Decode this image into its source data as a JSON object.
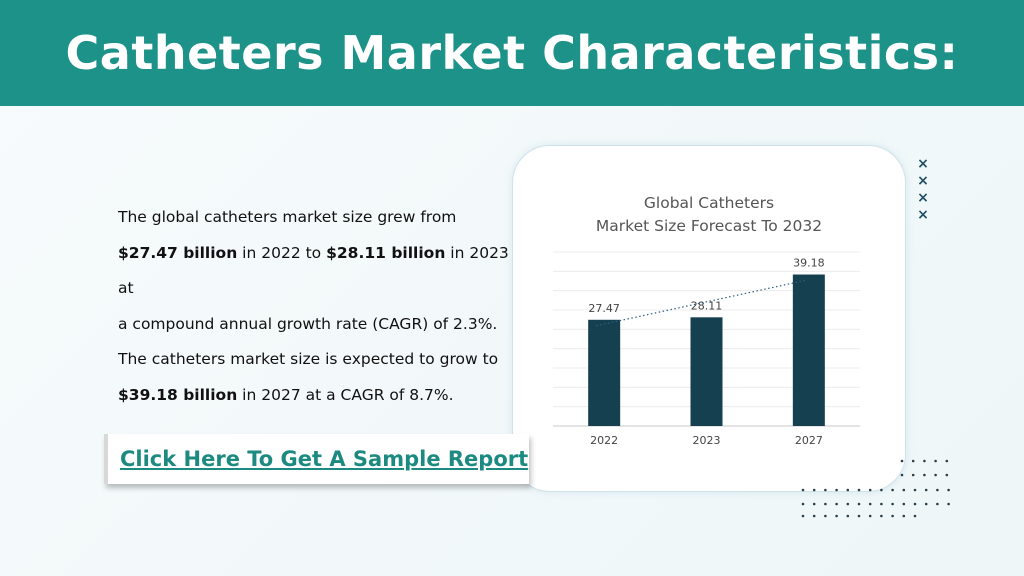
{
  "header": {
    "title": "Catheters Market Characteristics:"
  },
  "description": {
    "line1": "The global catheters market size grew from",
    "v2022": "$27.47 billion",
    "line2_mid": " in 2022 to ",
    "v2023": "$28.11 billion",
    "line2_end": " in 2023 at",
    "line3": "a compound annual growth rate (CAGR) of 2.3%.",
    "line4": "The catheters market size is expected to grow to",
    "v2027": "$39.18 billion",
    "line5_end": " in 2027 at a CAGR of 8.7%."
  },
  "cta": {
    "label": "Click Here To Get A Sample Report"
  },
  "decor": {
    "x_icon": "close-icon",
    "x_count": 4,
    "accent": "#1c9288",
    "bar_color": "#15404f"
  },
  "chart_data": {
    "type": "bar",
    "title_line1": "Global Catheters",
    "title_line2": "Market Size Forecast To 2032",
    "categories": [
      "2022",
      "2023",
      "2027"
    ],
    "values": [
      27.47,
      28.11,
      39.18
    ],
    "labels": [
      "27.47",
      "28.11",
      "39.18"
    ],
    "ylim": [
      0,
      45
    ],
    "grid": true,
    "trendline": "dotted",
    "xlabel": "",
    "ylabel": ""
  }
}
